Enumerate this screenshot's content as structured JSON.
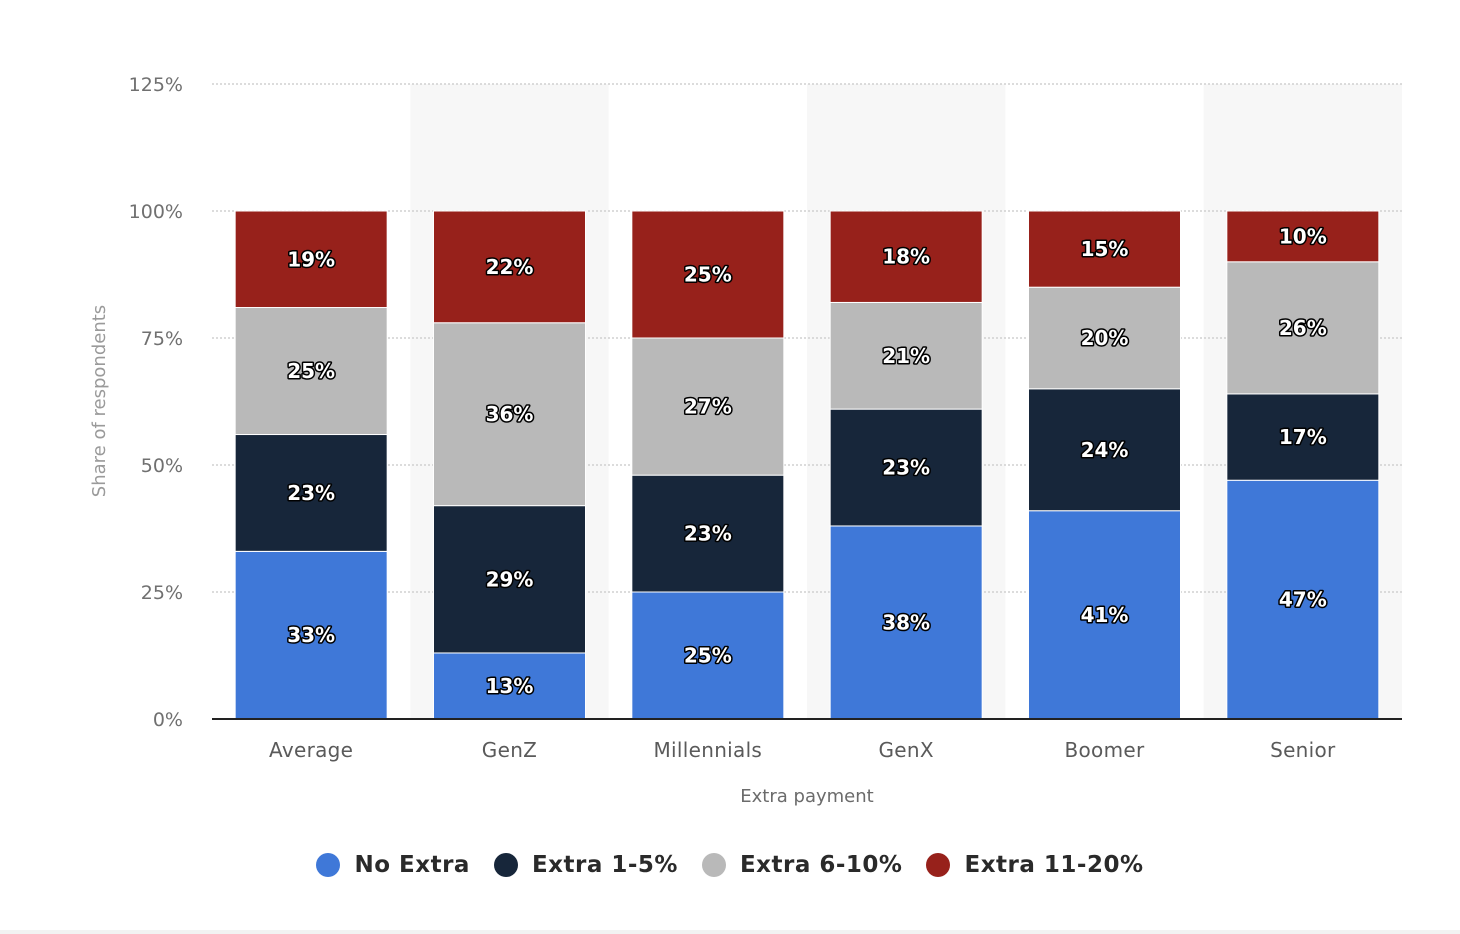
{
  "chart_data": {
    "type": "bar",
    "stacked": true,
    "categories": [
      "Average",
      "GenZ",
      "Millennials",
      "GenX",
      "Boomer",
      "Senior"
    ],
    "series": [
      {
        "name": "No Extra",
        "color": "#3f78d8",
        "values": [
          33,
          13,
          25,
          38,
          41,
          47
        ],
        "labels": [
          "33%",
          "13%",
          "25%",
          "38%",
          "41%",
          "47%"
        ]
      },
      {
        "name": "Extra 1-5%",
        "color": "#17263a",
        "values": [
          23,
          29,
          23,
          23,
          24,
          17
        ],
        "labels": [
          "23%",
          "29%",
          "23%",
          "23%",
          "24%",
          "17%"
        ]
      },
      {
        "name": "Extra 6-10%",
        "color": "#b9b9b9",
        "values": [
          25,
          36,
          27,
          21,
          20,
          26
        ],
        "labels": [
          "25%",
          "36%",
          "27%",
          "21%",
          "20%",
          "26%"
        ]
      },
      {
        "name": "Extra 11-20%",
        "color": "#97211b",
        "values": [
          19,
          22,
          25,
          18,
          15,
          10
        ],
        "labels": [
          "19%",
          "22%",
          "25%",
          "18%",
          "15%",
          "10%"
        ]
      }
    ],
    "xlabel": "Extra payment",
    "ylabel": "Share of respondents",
    "ylim": [
      0,
      125
    ],
    "yticks": [
      0,
      25,
      50,
      75,
      100,
      125
    ],
    "ytick_labels": [
      "0%",
      "25%",
      "50%",
      "75%",
      "100%",
      "125%"
    ],
    "grid": true,
    "legend_position": "bottom-center"
  }
}
